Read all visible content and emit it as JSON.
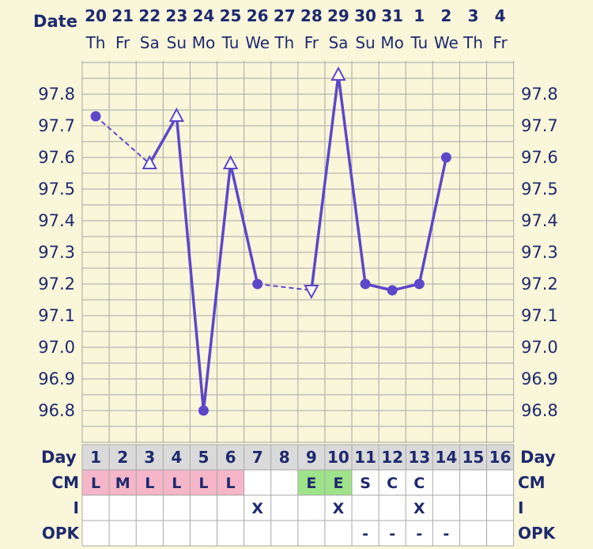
{
  "chart_data": {
    "type": "line",
    "header_label": "Date",
    "dates": [
      "20",
      "21",
      "22",
      "23",
      "24",
      "25",
      "26",
      "27",
      "28",
      "29",
      "30",
      "31",
      "1",
      "2",
      "3",
      "4"
    ],
    "weekdays": [
      "Th",
      "Fr",
      "Sa",
      "Su",
      "Mo",
      "Tu",
      "We",
      "Th",
      "Fr",
      "Sa",
      "Su",
      "Mo",
      "Tu",
      "We",
      "Th",
      "Fr"
    ],
    "ylim": [
      96.7,
      97.95
    ],
    "y_ticks": [
      "97.8",
      "97.7",
      "97.6",
      "97.5",
      "97.4",
      "97.3",
      "97.2",
      "97.1",
      "97.0",
      "96.9",
      "96.8"
    ],
    "grid": true,
    "series": [
      {
        "values": [
          97.73,
          null,
          97.58,
          97.73,
          96.8,
          97.58,
          97.2,
          null,
          97.18,
          97.86,
          97.2,
          97.18,
          97.2,
          97.6,
          null,
          null
        ],
        "markers": [
          "circle",
          null,
          "triangle",
          "triangle",
          "circle",
          "triangle",
          "circle",
          null,
          "triangle-down",
          "triangle",
          "circle",
          "circle",
          "circle",
          "circle",
          null,
          null
        ],
        "dashed_segments": [
          [
            0,
            2
          ],
          [
            6,
            8
          ]
        ]
      }
    ],
    "colors": {
      "line": "#5d47c9",
      "text": "#1e2a6e",
      "background": "#f9f6d9",
      "grid": "#a8a8a8",
      "cm_pink": "#f4b6c8",
      "cm_green": "#9ee28a",
      "header_row": "#dadada"
    },
    "table": {
      "day_label": "Day",
      "days": [
        "1",
        "2",
        "3",
        "4",
        "5",
        "6",
        "7",
        "8",
        "9",
        "10",
        "11",
        "12",
        "13",
        "14",
        "15",
        "16"
      ],
      "rows": [
        {
          "label": "CM",
          "values": [
            "L",
            "M",
            "L",
            "L",
            "L",
            "L",
            "",
            "",
            "E",
            "E",
            "S",
            "C",
            "C",
            "",
            "",
            ""
          ]
        },
        {
          "label": "I",
          "values": [
            "",
            "",
            "",
            "",
            "",
            "",
            "X",
            "",
            "",
            "X",
            "",
            "",
            "X",
            "",
            "",
            ""
          ]
        },
        {
          "label": "OPK",
          "values": [
            "",
            "",
            "",
            "",
            "",
            "",
            "",
            "",
            "",
            "",
            "-",
            "-",
            "-",
            "-",
            "",
            ""
          ]
        }
      ]
    }
  }
}
